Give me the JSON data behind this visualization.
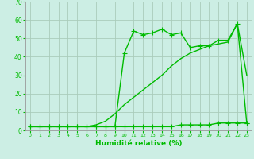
{
  "xlabel": "Humidité relative (%)",
  "background_color": "#cceee4",
  "grid_color": "#aaccbb",
  "line_color": "#00bb00",
  "x": [
    0,
    1,
    2,
    3,
    4,
    5,
    6,
    7,
    8,
    9,
    10,
    11,
    12,
    13,
    14,
    15,
    16,
    17,
    18,
    19,
    20,
    21,
    22,
    23
  ],
  "y_main": [
    2,
    2,
    2,
    2,
    2,
    2,
    2,
    2,
    2,
    2,
    42,
    54,
    52,
    53,
    55,
    52,
    53,
    45,
    46,
    46,
    49,
    49,
    58,
    4
  ],
  "y_low": [
    2,
    2,
    2,
    2,
    2,
    2,
    2,
    2,
    2,
    2,
    2,
    2,
    2,
    2,
    2,
    2,
    3,
    3,
    3,
    3,
    4,
    4,
    4,
    4
  ],
  "y_high": [
    2,
    2,
    2,
    2,
    2,
    2,
    2,
    3,
    5,
    9,
    14,
    18,
    22,
    26,
    30,
    35,
    39,
    42,
    44,
    46,
    47,
    48,
    58,
    30
  ],
  "ylim": [
    0,
    70
  ],
  "xlim_min": -0.5,
  "xlim_max": 23.5,
  "yticks": [
    0,
    10,
    20,
    30,
    40,
    50,
    60,
    70
  ],
  "xticks": [
    0,
    1,
    2,
    3,
    4,
    5,
    6,
    7,
    8,
    9,
    10,
    11,
    12,
    13,
    14,
    15,
    16,
    17,
    18,
    19,
    20,
    21,
    22,
    23
  ],
  "markersize": 3,
  "linewidth": 1.0
}
